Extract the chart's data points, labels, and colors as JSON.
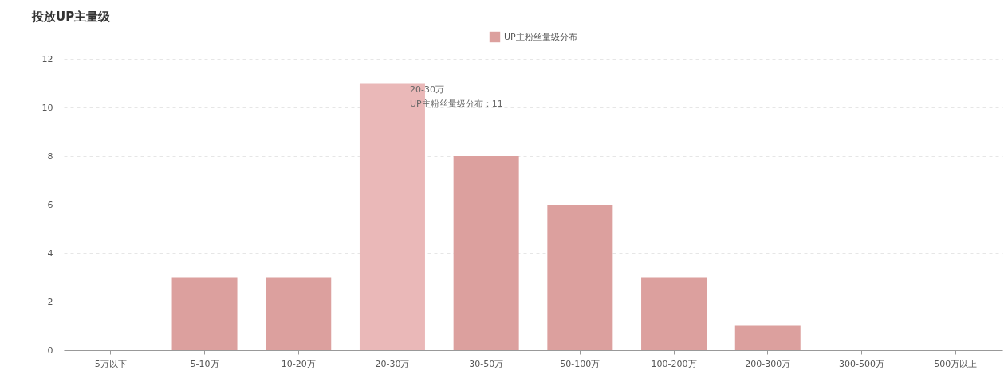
{
  "chart_data": {
    "type": "bar",
    "title": "投放UP主量级",
    "categories": [
      "5万以下",
      "5-10万",
      "10-20万",
      "20-30万",
      "30-50万",
      "50-100万",
      "100-200万",
      "200-300万",
      "300-500万",
      "500万以上"
    ],
    "series": [
      {
        "name": "UP主粉丝量级分布",
        "color": "#dca09e",
        "colors": [
          "#dca09e",
          "#dca09e",
          "#dca09e",
          "#eab8b8",
          "#dca09e",
          "#dca09e",
          "#dca09e",
          "#dca09e",
          "#dca09e",
          "#dca09e"
        ],
        "values": [
          0,
          3,
          3,
          11,
          8,
          6,
          3,
          1,
          0,
          0
        ]
      }
    ],
    "ylim": [
      0,
      12
    ],
    "yticks": [
      0,
      2,
      4,
      6,
      8,
      10,
      12
    ],
    "grid": "y",
    "legend": "top",
    "annotations": [
      {
        "text": "20-30万\nUP主粉丝量级分布：11",
        "x": "20-30万",
        "y": 11
      }
    ]
  }
}
